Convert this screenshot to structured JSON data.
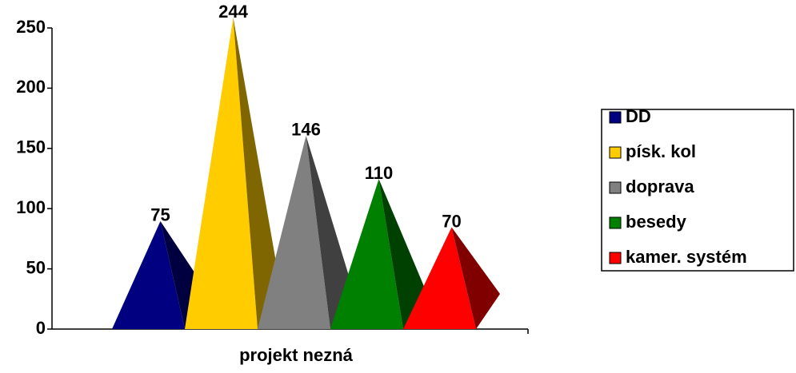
{
  "chart_data": {
    "type": "pyramid",
    "categories": [
      "projekt nezná"
    ],
    "series": [
      {
        "name": "DD",
        "color": "#000080",
        "values": [
          75
        ]
      },
      {
        "name": "písk. kol",
        "color": "#ffcc00",
        "values": [
          244
        ]
      },
      {
        "name": "doprava",
        "color": "#808080",
        "values": [
          146
        ]
      },
      {
        "name": "besedy",
        "color": "#008000",
        "values": [
          110
        ]
      },
      {
        "name": "kamer. systém",
        "color": "#ff0000",
        "values": [
          70
        ]
      }
    ],
    "ylim": [
      0,
      250
    ],
    "yticks": [
      0,
      50,
      100,
      150,
      200,
      250
    ],
    "legend": "right"
  }
}
